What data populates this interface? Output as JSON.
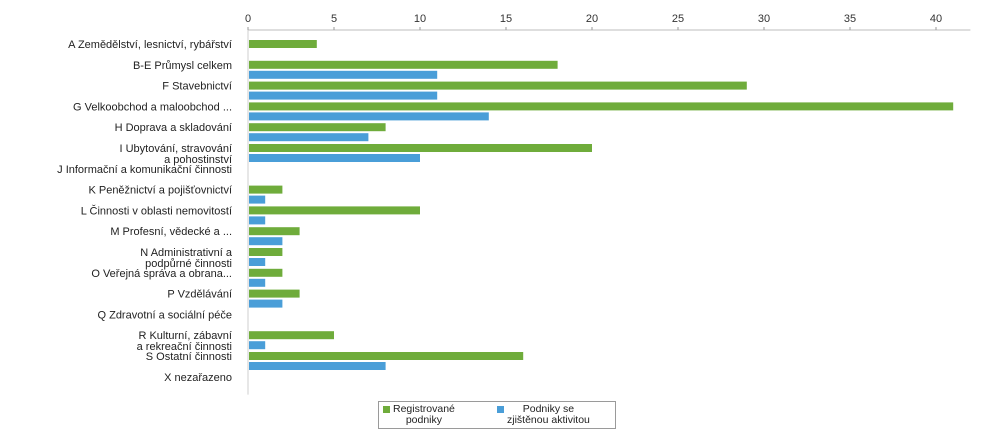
{
  "chart_data": {
    "type": "bar",
    "orientation": "horizontal",
    "categories": [
      "A Zemědělství, lesnictví, rybářství",
      "B-E Průmysl celkem",
      "F Stavebnictví",
      "G Velkoobchod a maloobchod ...",
      "H Doprava a skladování",
      "I Ubytování, stravování\na pohostinství",
      "J Informační a komunikační činnosti",
      "K Peněžnictví a pojišťovnictví",
      "L Činnosti v oblasti nemovitostí",
      "M Profesní, vědecké a ...",
      "N Administrativní a\npodpůrné činnosti",
      "O Veřejná správa a obrana...",
      "P Vzdělávání",
      "Q Zdravotní a sociální péče",
      "R Kulturní, zábavní\na rekreační činnosti",
      "S Ostatní činnosti",
      "X nezařazeno"
    ],
    "series": [
      {
        "name": "Registrované\npodniky",
        "color": "#6fac3b",
        "values": [
          4,
          18,
          29,
          41,
          8,
          20,
          0,
          2,
          10,
          3,
          2,
          2,
          3,
          0,
          5,
          16,
          0
        ]
      },
      {
        "name": "Podniky se\nzjištěnou aktivitou",
        "color": "#4a9ed8",
        "values": [
          0,
          11,
          11,
          14,
          7,
          10,
          0,
          1,
          1,
          2,
          1,
          1,
          2,
          0,
          1,
          8,
          0
        ]
      }
    ],
    "x_ticks": [
      0,
      5,
      10,
      15,
      20,
      25,
      30,
      35,
      40
    ],
    "xlim": [
      0,
      42
    ],
    "x_axis_position": "top",
    "grid": false,
    "legend_position": "bottom-center"
  }
}
